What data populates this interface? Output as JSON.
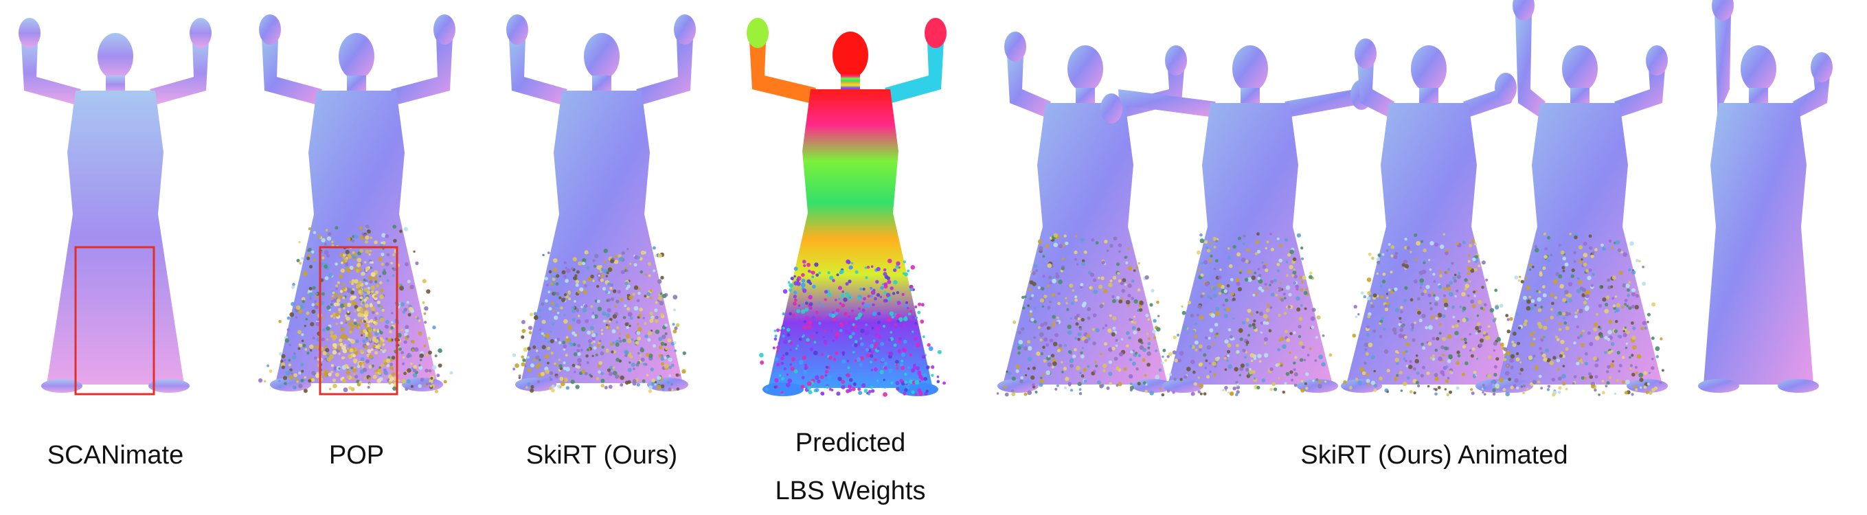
{
  "figure": {
    "panels": [
      {
        "id": "scanimate",
        "label": "SCANimate",
        "style": "normal-shaded",
        "highlight_box": true
      },
      {
        "id": "pop",
        "label": "POP",
        "style": "point-cloud",
        "highlight_box": true
      },
      {
        "id": "skirt",
        "label": "SkiRT (Ours)",
        "style": "point-cloud",
        "highlight_box": false
      },
      {
        "id": "lbs",
        "label_lines": [
          "Predicted",
          "LBS Weights"
        ],
        "style": "lbs-colormap",
        "highlight_box": false
      },
      {
        "id": "animated",
        "label": "SkiRT (Ours) Animated",
        "style": "animated-sequence",
        "pose_count": 5
      }
    ],
    "colors": {
      "highlight_box": "#e0302a",
      "normal_shade_a": "#8f8cf2",
      "normal_shade_b": "#e79be8",
      "normal_shade_c": "#9ec3ef",
      "background": "#ffffff"
    }
  }
}
